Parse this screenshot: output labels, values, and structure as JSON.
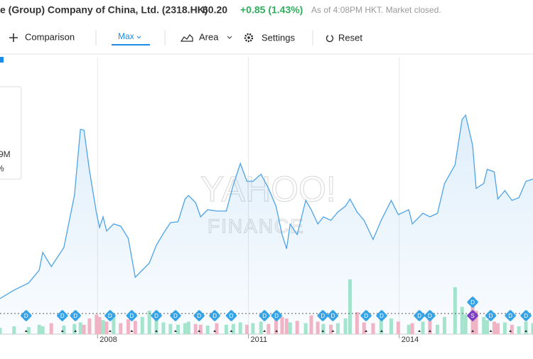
{
  "header": {
    "title": "e (Group) Company of China, Ltd. (2318.HK)",
    "price": "60.20",
    "change": "+0.85 (1.43%)",
    "status": "As of 4:08PM HKT. Market closed."
  },
  "toolbar": {
    "comparison": "Comparison",
    "range": "Max",
    "chart_type": "Area",
    "settings": "Settings",
    "reset": "Reset"
  },
  "tooltip": {
    "volume": "9M",
    "change": "%"
  },
  "watermark": [
    "YAHOO!",
    "FINANCE"
  ],
  "chart_data": {
    "type": "area",
    "x": [
      2006.06,
      2006.34,
      2006.63,
      2006.84,
      2006.91,
      2007.08,
      2007.33,
      2007.54,
      2007.66,
      2007.73,
      2007.84,
      2007.98,
      2008.04,
      2008.11,
      2008.18,
      2008.32,
      2008.46,
      2008.61,
      2008.75,
      2008.89,
      2009.03,
      2009.17,
      2009.31,
      2009.45,
      2009.6,
      2009.74,
      2009.81,
      2009.95,
      2010.05,
      2010.19,
      2010.37,
      2010.56,
      2010.7,
      2010.84,
      2010.97,
      2011.09,
      2011.25,
      2011.4,
      2011.55,
      2011.67,
      2011.76,
      2011.83,
      2011.97,
      2012.14,
      2012.25,
      2012.38,
      2012.49,
      2012.64,
      2012.78,
      2012.93,
      2013.02,
      2013.16,
      2013.3,
      2013.48,
      2013.64,
      2013.84,
      2013.98,
      2014.19,
      2014.26,
      2014.47,
      2014.61,
      2014.76,
      2014.9,
      2015.11,
      2015.25,
      2015.32,
      2015.46,
      2015.53,
      2015.68,
      2015.75,
      2015.89,
      2015.96,
      2016.1,
      2016.24,
      2016.38,
      2016.52,
      2016.66
    ],
    "series": [
      {
        "color": "#4da3e8",
        "values": [
          6.4,
          10.2,
          13.4,
          19.2,
          27.2,
          20.8,
          29.4,
          52.8,
          82.6,
          82.2,
          64.0,
          44.8,
          38.4,
          43.2,
          36.8,
          40.0,
          39.0,
          33.6,
          16.0,
          19.2,
          22.4,
          30.4,
          35.8,
          40.6,
          41.0,
          51.2,
          52.8,
          49.6,
          43.2,
          46.4,
          45.8,
          45.8,
          57.6,
          67.2,
          59.2,
          59.2,
          62.4,
          56.0,
          48.0,
          35.2,
          28.8,
          40.0,
          35.2,
          50.6,
          46.4,
          40.0,
          43.2,
          41.6,
          45.4,
          48.0,
          51.2,
          45.4,
          41.6,
          33.0,
          41.6,
          50.6,
          44.2,
          46.4,
          40.0,
          44.8,
          43.2,
          44.8,
          58.2,
          66.6,
          87.0,
          89.0,
          75.2,
          56.0,
          58.2,
          64.6,
          63.4,
          51.2,
          55.0,
          50.6,
          51.8,
          59.2,
          60.2
        ]
      },
      {
        "axis": "y2",
        "type": "bar",
        "up_color": "#a8e6cb",
        "down_color": "#f6b4c3",
        "values": [
          8,
          10,
          9,
          12,
          10,
          14,
          11,
          13,
          15,
          12,
          20,
          25,
          22,
          18,
          16,
          24,
          14,
          19,
          17,
          22,
          30,
          18,
          15,
          13,
          12,
          14,
          16,
          13,
          12,
          11,
          14,
          12,
          13,
          15,
          12,
          14,
          16,
          13,
          18,
          22,
          20,
          15,
          17,
          14,
          24,
          16,
          13,
          12,
          14,
          20,
          70,
          28,
          15,
          14,
          18,
          20,
          16,
          12,
          14,
          16,
          18,
          12,
          22,
          60,
          35,
          25,
          45,
          30,
          22,
          18,
          16,
          14,
          15,
          12,
          10,
          16,
          14
        ]
      }
    ],
    "xlim": [
      2006.06,
      2016.66
    ],
    "xticks": [
      2008,
      2011,
      2014
    ],
    "ylim": [
      0,
      112
    ],
    "y2lim": [
      0,
      100
    ],
    "grid": true,
    "events": [
      {
        "x": 2006.58,
        "label": "D"
      },
      {
        "x": 2007.3,
        "label": "D"
      },
      {
        "x": 2007.56,
        "label": "D"
      },
      {
        "x": 2008.25,
        "label": "D"
      },
      {
        "x": 2008.68,
        "label": "D"
      },
      {
        "x": 2009.17,
        "label": "D"
      },
      {
        "x": 2009.55,
        "label": "D"
      },
      {
        "x": 2010.02,
        "label": "D"
      },
      {
        "x": 2010.33,
        "label": "D"
      },
      {
        "x": 2010.66,
        "label": "D"
      },
      {
        "x": 2011.32,
        "label": "D"
      },
      {
        "x": 2011.56,
        "label": "D"
      },
      {
        "x": 2012.48,
        "label": "D"
      },
      {
        "x": 2012.68,
        "label": "D"
      },
      {
        "x": 2013.34,
        "label": "D"
      },
      {
        "x": 2013.65,
        "label": "D"
      },
      {
        "x": 2014.4,
        "label": "D"
      },
      {
        "x": 2014.61,
        "label": "D"
      },
      {
        "x": 2015.46,
        "label": "S"
      },
      {
        "x": 2015.46,
        "label": "D"
      },
      {
        "x": 2015.82,
        "label": "D"
      },
      {
        "x": 2016.21,
        "label": "D"
      },
      {
        "x": 2016.52,
        "label": "D"
      }
    ]
  }
}
